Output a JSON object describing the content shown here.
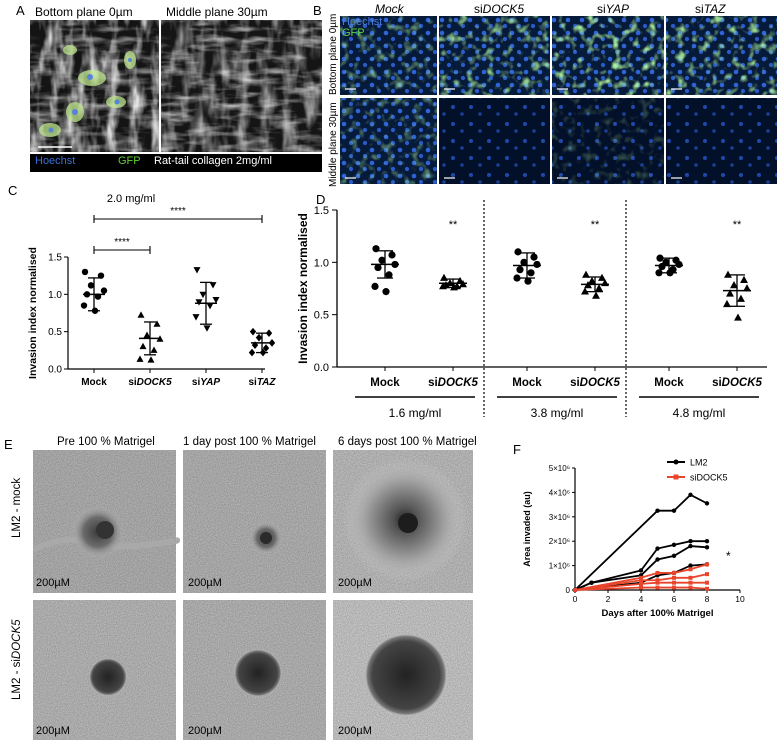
{
  "panels": {
    "A": {
      "label": "A",
      "titles": [
        "Bottom plane 0µm",
        "Middle plane 30µm"
      ],
      "legend": [
        {
          "text": "Hoechst",
          "color": "#3b6fd6"
        },
        {
          "text": "GFP",
          "color": "#5fcf3a"
        },
        {
          "text": "Rat-tail collagen 2mg/ml",
          "color": "#ffffff"
        }
      ]
    },
    "B": {
      "label": "B",
      "columns": [
        {
          "pre": "",
          "ital": "Mock"
        },
        {
          "pre": "si",
          "ital": "DOCK5"
        },
        {
          "pre": "si",
          "ital": "YAP"
        },
        {
          "pre": "si",
          "ital": "TAZ"
        }
      ],
      "rows": [
        "Bottom plane 0µm",
        "Middle plane 30µm"
      ],
      "channel_labels": [
        {
          "text": "Hoechst",
          "color": "#4a7be0"
        },
        {
          "text": "GFP",
          "color": "#5fcf3a"
        }
      ]
    },
    "C": {
      "label": "C"
    },
    "D": {
      "label": "D"
    },
    "E": {
      "label": "E",
      "columns": [
        "Pre 100 % Matrigel",
        "1 day post 100 % Matrigel",
        "6 days post 100 % Matrigel"
      ],
      "rows": [
        {
          "pre": "LM2 - ",
          "ital": "mock",
          "italic": false
        },
        {
          "pre": "LM2 - si",
          "ital": "DOCK5",
          "italic": true
        }
      ],
      "scalebar": "200µM"
    },
    "F": {
      "label": "F"
    }
  },
  "chart_data": [
    {
      "id": "C",
      "type": "scatter",
      "title": "2.0 mg/ml",
      "ylabel": "Invasion index normalised",
      "ylim": [
        0,
        1.5
      ],
      "yticks": [
        "0.0",
        "0.5",
        "1.0",
        "1.5"
      ],
      "categories": [
        {
          "pre": "",
          "ital": "Mock"
        },
        {
          "pre": "si",
          "ital": "DOCK5"
        },
        {
          "pre": "si",
          "ital": "YAP"
        },
        {
          "pre": "si",
          "ital": "TAZ"
        }
      ],
      "series": [
        {
          "category": "Mock",
          "marker": "circle",
          "mean": 1.0,
          "sd": 0.22,
          "values": [
            1.3,
            1.25,
            1.12,
            1.05,
            1.0,
            0.97,
            0.85,
            0.78
          ]
        },
        {
          "category": "siDOCK5",
          "marker": "triangle-up",
          "mean": 0.41,
          "sd": 0.22,
          "values": [
            0.72,
            0.6,
            0.45,
            0.4,
            0.3,
            0.25,
            0.13,
            0.12
          ]
        },
        {
          "category": "siYAP",
          "marker": "triangle-down",
          "mean": 0.88,
          "sd": 0.28,
          "values": [
            1.33,
            1.13,
            1.0,
            0.93,
            0.9,
            0.85,
            0.7,
            0.55
          ]
        },
        {
          "category": "siTAZ",
          "marker": "diamond",
          "mean": 0.35,
          "sd": 0.13,
          "values": [
            0.5,
            0.48,
            0.42,
            0.35,
            0.32,
            0.28,
            0.22,
            0.22
          ]
        }
      ],
      "comparisons": [
        {
          "from": 0,
          "to": 1,
          "label": "****"
        },
        {
          "from": 0,
          "to": 3,
          "label": "****"
        }
      ]
    },
    {
      "id": "D",
      "type": "scatter",
      "ylabel": "Invasion index normalised",
      "ylim": [
        0,
        1.5
      ],
      "yticks": [
        "0.0",
        "0.5",
        "1.0",
        "1.5"
      ],
      "groups": [
        {
          "concentration": "1.6 mg/ml",
          "sig": "**",
          "series": [
            {
              "category": {
                "pre": "",
                "ital": "Mock"
              },
              "marker": "circle",
              "mean": 0.98,
              "sd": 0.13,
              "values": [
                1.13,
                1.07,
                1.02,
                0.98,
                0.95,
                0.88,
                0.77,
                0.72
              ]
            },
            {
              "category": {
                "pre": "si",
                "ital": "DOCK5"
              },
              "marker": "triangle-up",
              "mean": 0.8,
              "sd": 0.04,
              "values": [
                0.85,
                0.82,
                0.8,
                0.79,
                0.78,
                0.77,
                0.77,
                0.76
              ]
            }
          ]
        },
        {
          "concentration": "3.8 mg/ml",
          "sig": "**",
          "series": [
            {
              "category": {
                "pre": "",
                "ital": "Mock"
              },
              "marker": "circle",
              "mean": 0.97,
              "sd": 0.12,
              "values": [
                1.1,
                1.05,
                1.0,
                0.98,
                0.93,
                0.9,
                0.85,
                0.82
              ]
            },
            {
              "category": {
                "pre": "si",
                "ital": "DOCK5"
              },
              "marker": "triangle-up",
              "mean": 0.79,
              "sd": 0.07,
              "values": [
                0.88,
                0.85,
                0.82,
                0.8,
                0.78,
                0.75,
                0.72,
                0.68
              ]
            }
          ]
        },
        {
          "concentration": "4.8 mg/ml",
          "sig": "**",
          "series": [
            {
              "category": {
                "pre": "",
                "ital": "Mock"
              },
              "marker": "circle",
              "mean": 0.97,
              "sd": 0.07,
              "values": [
                1.04,
                1.02,
                1.0,
                0.98,
                0.96,
                0.93,
                0.9,
                0.9
              ]
            },
            {
              "category": {
                "pre": "si",
                "ital": "DOCK5"
              },
              "marker": "triangle-up",
              "mean": 0.73,
              "sd": 0.15,
              "values": [
                0.88,
                0.83,
                0.78,
                0.75,
                0.7,
                0.65,
                0.6,
                0.47
              ]
            }
          ]
        }
      ]
    },
    {
      "id": "F",
      "type": "line",
      "xlabel": "Days after 100% Matrigel",
      "ylabel": "Area invaded (au)",
      "xlim": [
        0,
        10
      ],
      "ylim": [
        0,
        5000000
      ],
      "xticks": [
        0,
        2,
        4,
        6,
        8,
        10
      ],
      "yticks": [
        {
          "value": 0,
          "label": "0"
        },
        {
          "value": 1000000,
          "label": "1×10⁶"
        },
        {
          "value": 2000000,
          "label": "2×10⁶"
        },
        {
          "value": 3000000,
          "label": "3×10⁶"
        },
        {
          "value": 4000000,
          "label": "4×10⁶"
        },
        {
          "value": 5000000,
          "label": "5×10⁶"
        }
      ],
      "annotation": "*",
      "series": [
        {
          "name": "LM2",
          "color": "#000000",
          "lines": [
            [
              [
                0,
                0
              ],
              [
                5,
                3250000
              ],
              [
                6,
                3250000
              ],
              [
                7,
                3900000
              ],
              [
                8,
                3550000
              ]
            ],
            [
              [
                0,
                0
              ],
              [
                1,
                300000
              ],
              [
                4,
                800000
              ],
              [
                5,
                1700000
              ],
              [
                6,
                1850000
              ],
              [
                7,
                2000000
              ],
              [
                8,
                2000000
              ]
            ],
            [
              [
                0,
                0
              ],
              [
                1,
                300000
              ],
              [
                4,
                600000
              ],
              [
                5,
                1250000
              ],
              [
                6,
                1400000
              ],
              [
                7,
                1800000
              ],
              [
                8,
                1750000
              ]
            ],
            [
              [
                0,
                0
              ],
              [
                4,
                300000
              ],
              [
                5,
                600000
              ],
              [
                6,
                700000
              ],
              [
                7,
                1000000
              ],
              [
                8,
                1050000
              ]
            ]
          ]
        },
        {
          "name": "siDOCK5",
          "color": "#e8452c",
          "lines": [
            [
              [
                0,
                0
              ],
              [
                4,
                500000
              ],
              [
                5,
                700000
              ],
              [
                6,
                700000
              ],
              [
                7,
                850000
              ],
              [
                8,
                1050000
              ]
            ],
            [
              [
                0,
                0
              ],
              [
                4,
                400000
              ],
              [
                5,
                400000
              ],
              [
                6,
                500000
              ],
              [
                7,
                500000
              ],
              [
                8,
                650000
              ]
            ],
            [
              [
                0,
                0
              ],
              [
                4,
                250000
              ],
              [
                5,
                300000
              ],
              [
                6,
                300000
              ],
              [
                7,
                300000
              ],
              [
                8,
                300000
              ]
            ],
            [
              [
                0,
                0
              ],
              [
                4,
                100000
              ],
              [
                5,
                100000
              ],
              [
                6,
                100000
              ],
              [
                7,
                100000
              ],
              [
                8,
                50000
              ]
            ]
          ]
        }
      ]
    }
  ]
}
